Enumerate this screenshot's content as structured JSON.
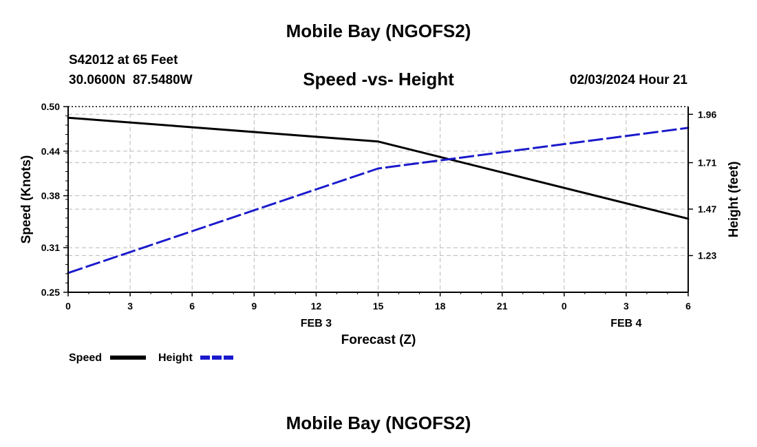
{
  "header": {
    "title": "Mobile Bay (NGOFS2)",
    "station": "S42012 at 65 Feet",
    "coords": "30.0600N  87.5480W",
    "subtitle": "Speed -vs- Height",
    "datetime": "02/03/2024 Hour 21"
  },
  "footer": {
    "title": "Mobile Bay (NGOFS2)"
  },
  "legend": {
    "speed_label": "Speed",
    "height_label": "Height"
  },
  "chart_data": {
    "type": "line",
    "title": "Speed -vs- Height",
    "xlabel": "Forecast (Z)",
    "ylabel_left": "Speed (Knots)",
    "ylabel_right": "Height (feet)",
    "x_ticks": [
      "0",
      "3",
      "6",
      "9",
      "12",
      "15",
      "18",
      "21",
      "0",
      "3",
      "6"
    ],
    "x_day_labels": [
      {
        "label": "FEB 3",
        "tick_index": 4
      },
      {
        "label": "FEB 4",
        "tick_index": 9
      }
    ],
    "x_range": [
      0,
      30
    ],
    "y_left_range": [
      0.25,
      0.5
    ],
    "y_left_ticks": [
      "0.50",
      "0.44",
      "0.38",
      "0.31",
      "0.25"
    ],
    "y_left_tick_values": [
      0.5,
      0.44,
      0.38,
      0.31,
      0.25
    ],
    "y_right_range": [
      1.04,
      2.0
    ],
    "y_right_ticks": [
      "1.96",
      "1.71",
      "1.47",
      "1.23"
    ],
    "y_right_tick_values": [
      1.96,
      1.71,
      1.47,
      1.23
    ],
    "series": [
      {
        "name": "Speed",
        "axis": "left",
        "color": "#000000",
        "dash": "solid",
        "x": [
          0,
          15,
          30
        ],
        "values": [
          0.485,
          0.453,
          0.349
        ]
      },
      {
        "name": "Height",
        "axis": "right",
        "color": "#1a1acc",
        "dash": "dashed",
        "x": [
          0,
          15,
          30
        ],
        "values": [
          1.14,
          1.68,
          1.89
        ]
      }
    ]
  }
}
